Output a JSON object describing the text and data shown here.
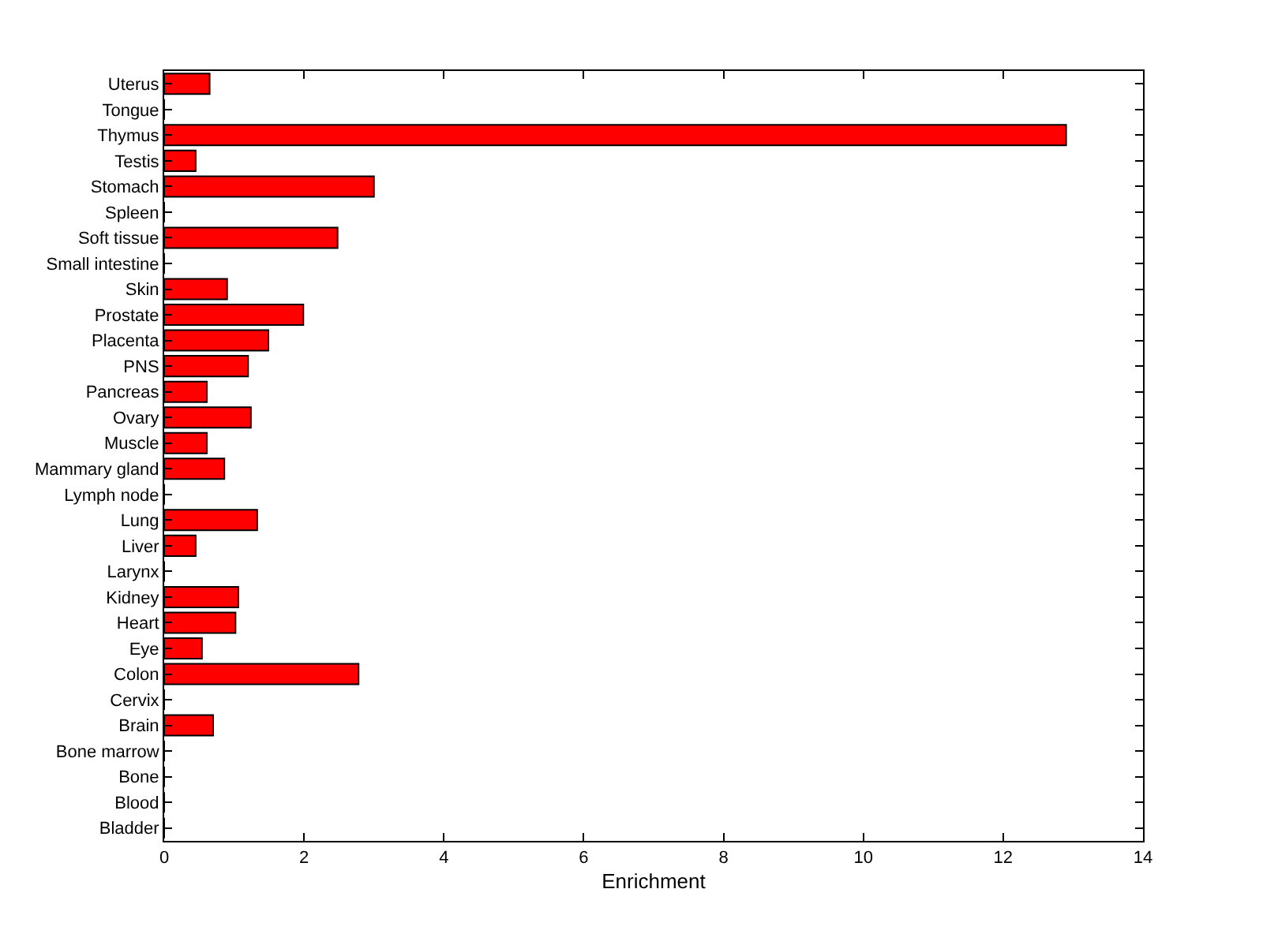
{
  "chart_data": {
    "type": "bar",
    "orientation": "horizontal",
    "xlabel": "Enrichment",
    "categories": [
      "Uterus",
      "Tongue",
      "Thymus",
      "Testis",
      "Stomach",
      "Spleen",
      "Soft tissue",
      "Small intestine",
      "Skin",
      "Prostate",
      "Placenta",
      "PNS",
      "Pancreas",
      "Ovary",
      "Muscle",
      "Mammary gland",
      "Lymph node",
      "Lung",
      "Liver",
      "Larynx",
      "Kidney",
      "Heart",
      "Eye",
      "Colon",
      "Cervix",
      "Brain",
      "Bone marrow",
      "Bone",
      "Blood",
      "Bladder"
    ],
    "values": [
      0.65,
      0,
      12.9,
      0.45,
      3.0,
      0,
      2.48,
      0,
      0.9,
      1.99,
      1.49,
      1.2,
      0.61,
      1.24,
      0.61,
      0.86,
      0,
      1.33,
      0.45,
      0,
      1.06,
      1.02,
      0.54,
      2.78,
      0,
      0.7,
      0,
      0,
      0,
      0
    ],
    "color": "#ff0000",
    "xlim": [
      0,
      14
    ],
    "xticks": [
      0,
      2,
      4,
      6,
      8,
      10,
      12,
      14
    ]
  }
}
